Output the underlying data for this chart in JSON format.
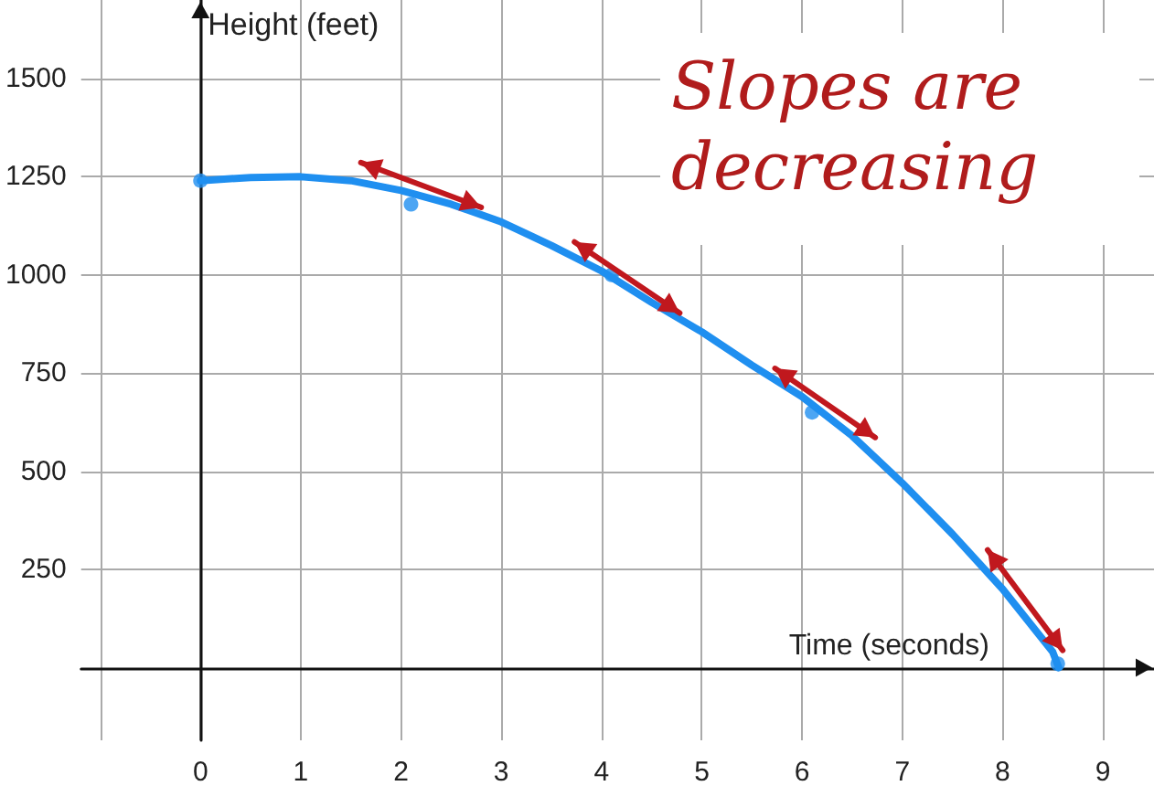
{
  "chart_data": {
    "type": "line",
    "xlabel": "Time (seconds)",
    "ylabel": "Height (feet)",
    "annotations": [
      "Slopes are decreasing"
    ],
    "xlim": [
      -1.19,
      9.51
    ],
    "ylim": [
      -185,
      1700
    ],
    "xticks": [
      {
        "value": -1,
        "label": null
      },
      0,
      1,
      2,
      3,
      4,
      5,
      6,
      7,
      8,
      9
    ],
    "yticks": [
      250,
      500,
      750,
      1000,
      1250,
      1500
    ],
    "grid": true,
    "line_style": "solid",
    "series": [
      {
        "color": "#1f8ff0",
        "x": [
          0,
          0.5,
          1,
          1.5,
          2,
          2.5,
          3,
          3.5,
          4,
          4.5,
          5,
          5.5,
          6,
          6.5,
          7,
          7.5,
          8,
          8.5,
          8.56
        ],
        "values": [
          1240,
          1248,
          1250,
          1240,
          1215,
          1180,
          1135,
          1075,
          1010,
          930,
          855,
          770,
          690,
          590,
          470,
          340,
          200,
          40,
          0
        ]
      },
      {
        "type": "scatter",
        "marker": "circle",
        "color": "#1f8ff0",
        "x": [
          0,
          2.1,
          4.1,
          6.1,
          8.55
        ],
        "values": [
          1240,
          1180,
          1000,
          650,
          10
        ]
      }
    ]
  }
}
